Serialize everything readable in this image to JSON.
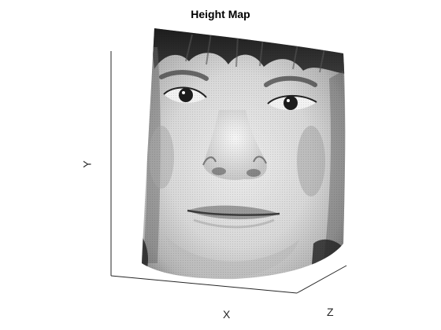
{
  "figure": {
    "title": "Height Map",
    "axes": {
      "x_label": "X",
      "y_label": "Y",
      "z_label": "Z"
    },
    "surface": {
      "content": "grayscale 3D surface render of a human face",
      "colormap": "gray"
    },
    "colors": {
      "background": "#ffffff",
      "axis_line": "#262626",
      "title": "#000000"
    }
  }
}
